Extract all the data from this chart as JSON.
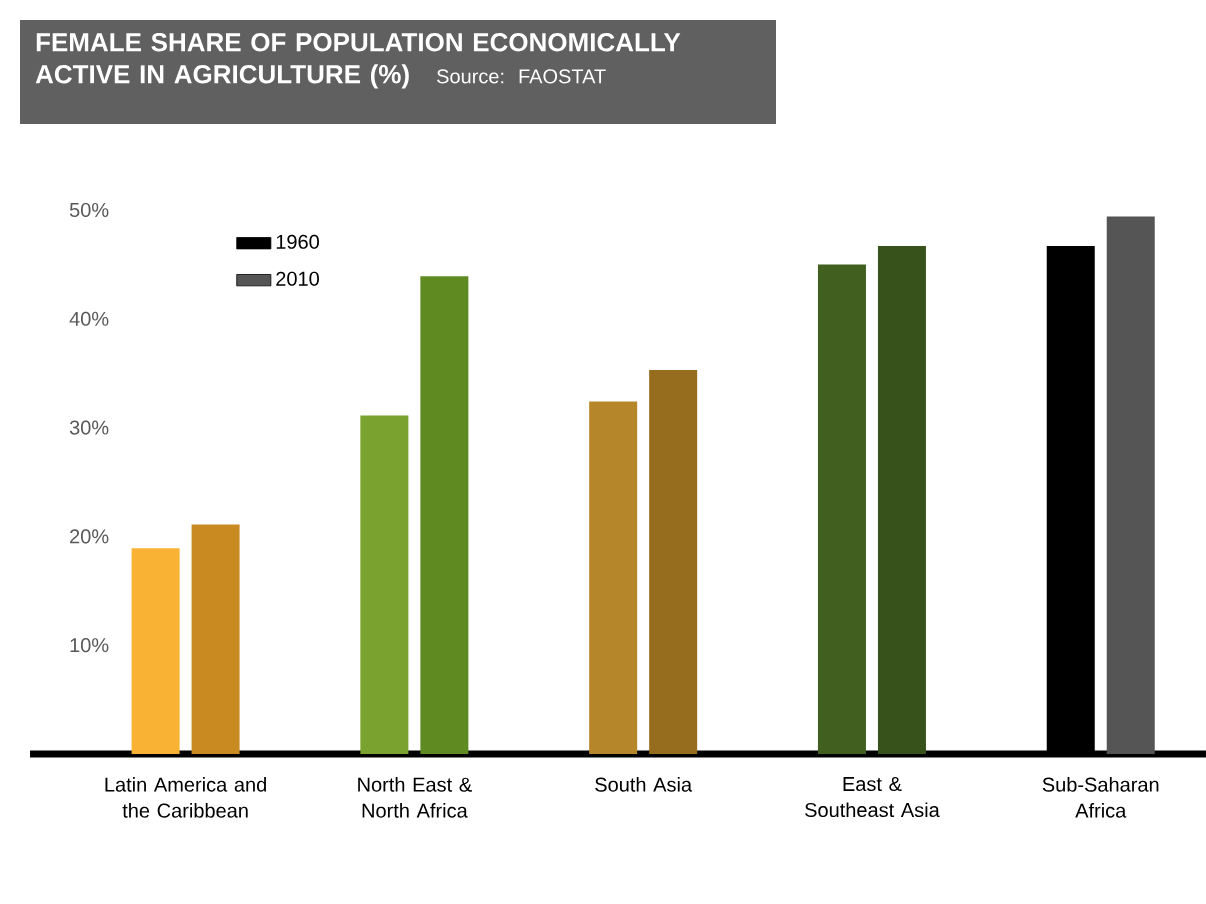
{
  "chart_data": {
    "type": "bar",
    "title": "FEMALE SHARE OF POPULATION ECONOMICALLY ACTIVE IN AGRICULTURE (%)",
    "annotations": [
      "Source: FAOSTAT"
    ],
    "categories": [
      "Latin America and the Caribbean",
      "North East & North Africa",
      "South Asia",
      "East & Southeast Asia",
      "Sub-Saharan Africa"
    ],
    "series": [
      {
        "name": "1960",
        "colors": [
          "#f9b234",
          "#7aa22e",
          "#b5862a",
          "#41601f",
          "#000000"
        ],
        "values": [
          18.9,
          31.1,
          32.4,
          45.0,
          46.7
        ]
      },
      {
        "name": "2010",
        "colors": [
          "#c98a22",
          "#5f8a22",
          "#966c1e",
          "#37521a",
          "#555555"
        ],
        "values": [
          21.1,
          43.9,
          35.3,
          46.7,
          49.4
        ]
      }
    ],
    "ylim": [
      0,
      50
    ],
    "yticks": [
      {
        "value": 10,
        "label": "10%"
      },
      {
        "value": 20,
        "label": "20%"
      },
      {
        "value": 30,
        "label": "30%"
      },
      {
        "value": 40,
        "label": "40%"
      },
      {
        "value": 50,
        "label": "50%"
      }
    ],
    "legend": "top left"
  }
}
